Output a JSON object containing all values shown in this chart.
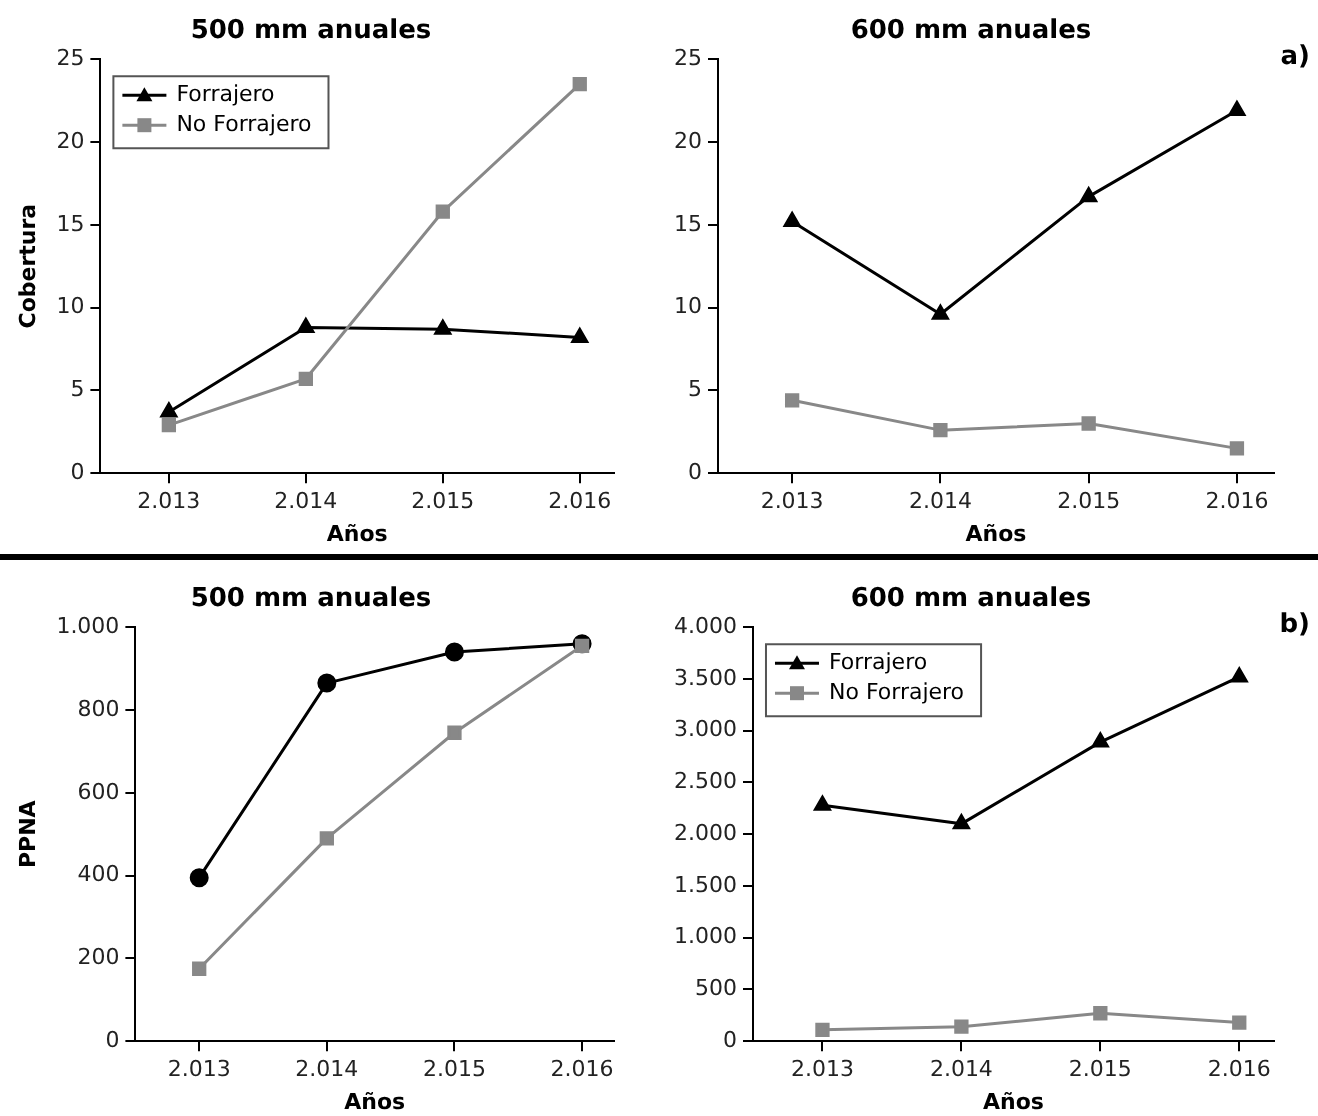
{
  "chart_data": [
    {
      "type": "line",
      "title": "500 mm anuales",
      "xlabel": "Años",
      "ylabel": "Cobertura",
      "xlim": [
        2012.5,
        2016.25
      ],
      "xticks": [
        {
          "value": 2013,
          "label": "2.013"
        },
        {
          "value": 2014,
          "label": "2.014"
        },
        {
          "value": 2015,
          "label": "2.015"
        },
        {
          "value": 2016,
          "label": "2.016"
        }
      ],
      "ylim": [
        0,
        25
      ],
      "yticks": [
        0,
        5,
        10,
        15,
        20,
        25
      ],
      "x": [
        2013,
        2014,
        2015,
        2016
      ],
      "grid": false,
      "legend": "top left",
      "series": [
        {
          "name": "Forrajero",
          "color": "#000000",
          "marker": "triangle",
          "values": [
            3.7,
            8.8,
            8.7,
            8.2
          ]
        },
        {
          "name": "No Forrajero",
          "color": "#888888",
          "marker": "square",
          "values": [
            2.9,
            5.7,
            15.8,
            23.5
          ]
        }
      ]
    },
    {
      "type": "line",
      "title": "600 mm anuales",
      "xlabel": "Años",
      "annotations": [
        "a)"
      ],
      "xlim": [
        2012.5,
        2016.25
      ],
      "xticks": [
        {
          "value": 2013,
          "label": "2.013"
        },
        {
          "value": 2014,
          "label": "2.014"
        },
        {
          "value": 2015,
          "label": "2.015"
        },
        {
          "value": 2016,
          "label": "2.016"
        }
      ],
      "ylim": [
        0,
        25
      ],
      "yticks": [
        0,
        5,
        10,
        15,
        20,
        25
      ],
      "x": [
        2013,
        2014,
        2015,
        2016
      ],
      "grid": false,
      "legend": false,
      "series": [
        {
          "color": "#000000",
          "marker": "triangle",
          "values": [
            15.2,
            9.6,
            16.7,
            21.9
          ]
        },
        {
          "color": "#888888",
          "marker": "square",
          "values": [
            4.4,
            2.6,
            3.0,
            1.5
          ]
        }
      ]
    },
    {
      "type": "line",
      "title": "500 mm anuales",
      "xlabel": "Años",
      "ylabel": "PPNA",
      "xlim": [
        2012.5,
        2016.25
      ],
      "xticks": [
        {
          "value": 2013,
          "label": "2.013"
        },
        {
          "value": 2014,
          "label": "2.014"
        },
        {
          "value": 2015,
          "label": "2.015"
        },
        {
          "value": 2016,
          "label": "2.016"
        }
      ],
      "ylim": [
        0,
        1000
      ],
      "yticks": [
        0,
        200,
        400,
        600,
        800,
        {
          "value": 1000,
          "label": "1.000"
        }
      ],
      "x": [
        2013,
        2014,
        2015,
        2016
      ],
      "grid": false,
      "legend": false,
      "series": [
        {
          "color": "#000000",
          "marker": "circle",
          "values": [
            395,
            865,
            940,
            960
          ]
        },
        {
          "color": "#888888",
          "marker": "square",
          "values": [
            175,
            490,
            745,
            955
          ]
        }
      ]
    },
    {
      "type": "line",
      "title": "600 mm anuales",
      "xlabel": "Años",
      "annotations": [
        "b)"
      ],
      "xlim": [
        2012.5,
        2016.25
      ],
      "xticks": [
        {
          "value": 2013,
          "label": "2.013"
        },
        {
          "value": 2014,
          "label": "2.014"
        },
        {
          "value": 2015,
          "label": "2.015"
        },
        {
          "value": 2016,
          "label": "2.016"
        }
      ],
      "ylim": [
        0,
        4000
      ],
      "yticks": [
        0,
        500,
        {
          "value": 1000,
          "label": "1.000"
        },
        {
          "value": 1500,
          "label": "1.500"
        },
        {
          "value": 2000,
          "label": "2.000"
        },
        {
          "value": 2500,
          "label": "2.500"
        },
        {
          "value": 3000,
          "label": "3.000"
        },
        {
          "value": 3500,
          "label": "3.500"
        },
        {
          "value": 4000,
          "label": "4.000"
        }
      ],
      "x": [
        2013,
        2014,
        2015,
        2016
      ],
      "grid": false,
      "legend": "top left",
      "series": [
        {
          "name": "Forrajero",
          "color": "#000000",
          "marker": "triangle",
          "values": [
            2280,
            2100,
            2890,
            3520
          ]
        },
        {
          "name": "No Forrajero",
          "color": "#888888",
          "marker": "square",
          "values": [
            110,
            140,
            270,
            180
          ]
        }
      ]
    }
  ]
}
